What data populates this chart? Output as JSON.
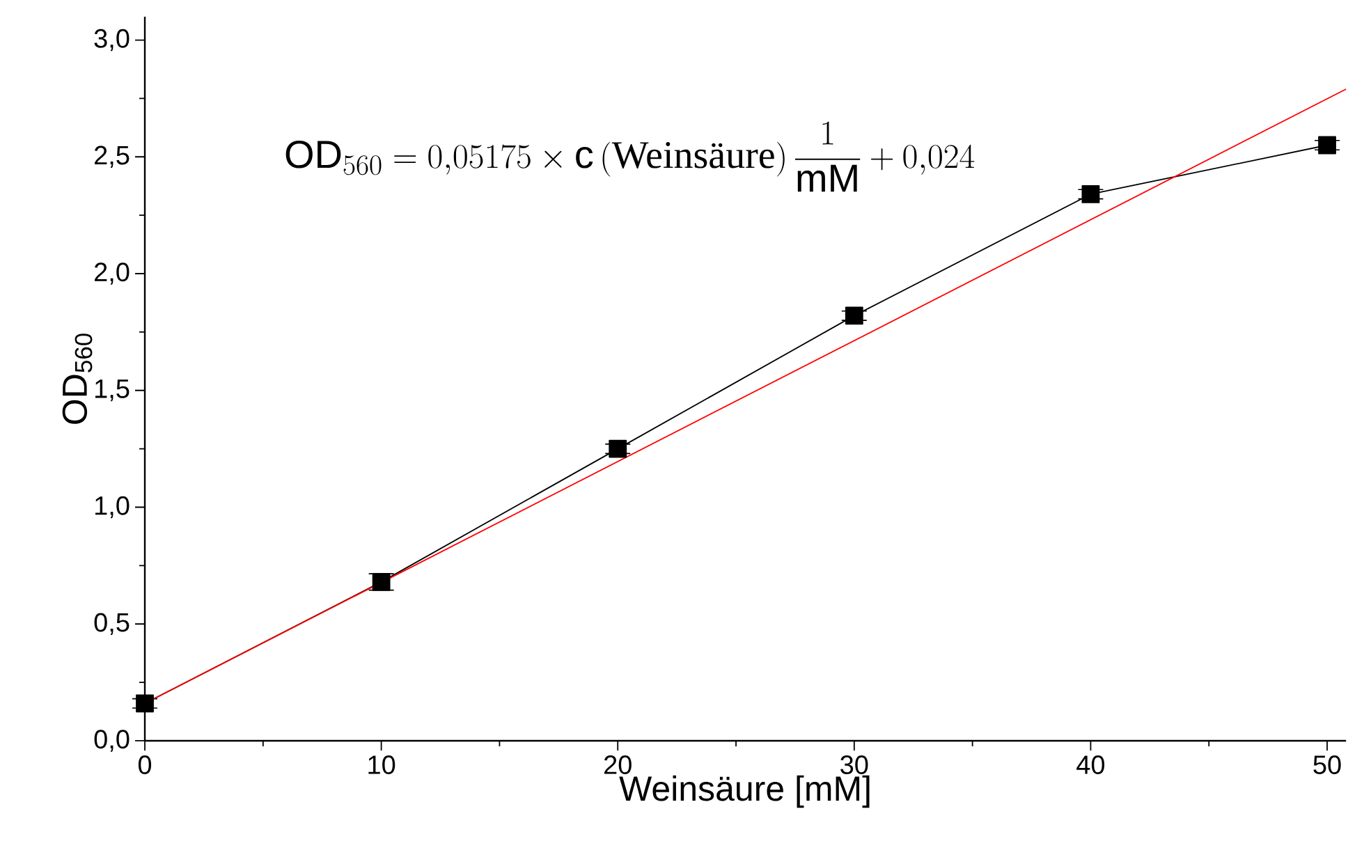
{
  "chart_data": {
    "type": "line",
    "xlabel": "Weinsäure [mM]",
    "ylabel": "OD$_{560}$",
    "x": [
      0,
      10,
      20,
      30,
      40,
      50
    ],
    "series": [
      {
        "color": "#000000",
        "values": [
          0.16,
          0.68,
          1.25,
          1.82,
          2.34,
          2.55
        ],
        "errors": [
          0.02,
          0.035,
          0.02,
          0.02,
          0.02,
          0.02
        ]
      },
      {
        "type": "line",
        "marker": "none",
        "color": "#ff0000",
        "x": [
          0,
          50.8
        ],
        "values": [
          0.16,
          2.79
        ]
      }
    ],
    "marker": "square",
    "line_style": "solid",
    "xlim": [
      0,
      50.8
    ],
    "ylim": [
      0,
      3.1
    ],
    "xticks": [
      0,
      10,
      20,
      30,
      40,
      50
    ],
    "yticks": [
      {
        "value": 0,
        "label": "0,0"
      },
      {
        "value": 0.5,
        "label": "0,5"
      },
      {
        "value": 1.0,
        "label": "1,0"
      },
      {
        "value": 1.5,
        "label": "1,5"
      },
      {
        "value": 2.0,
        "label": "2,0"
      },
      {
        "value": 2.5,
        "label": "2,5"
      },
      {
        "value": 3.0,
        "label": "3,0"
      }
    ],
    "annotations": [
      "\\mathrm{OD}_{560}=0{,}05175\\times \\mathrm{c}\\left(\\text{Weinsäure}\\right)\\frac{1}{\\mathrm{mM}}+0{,}024"
    ]
  }
}
